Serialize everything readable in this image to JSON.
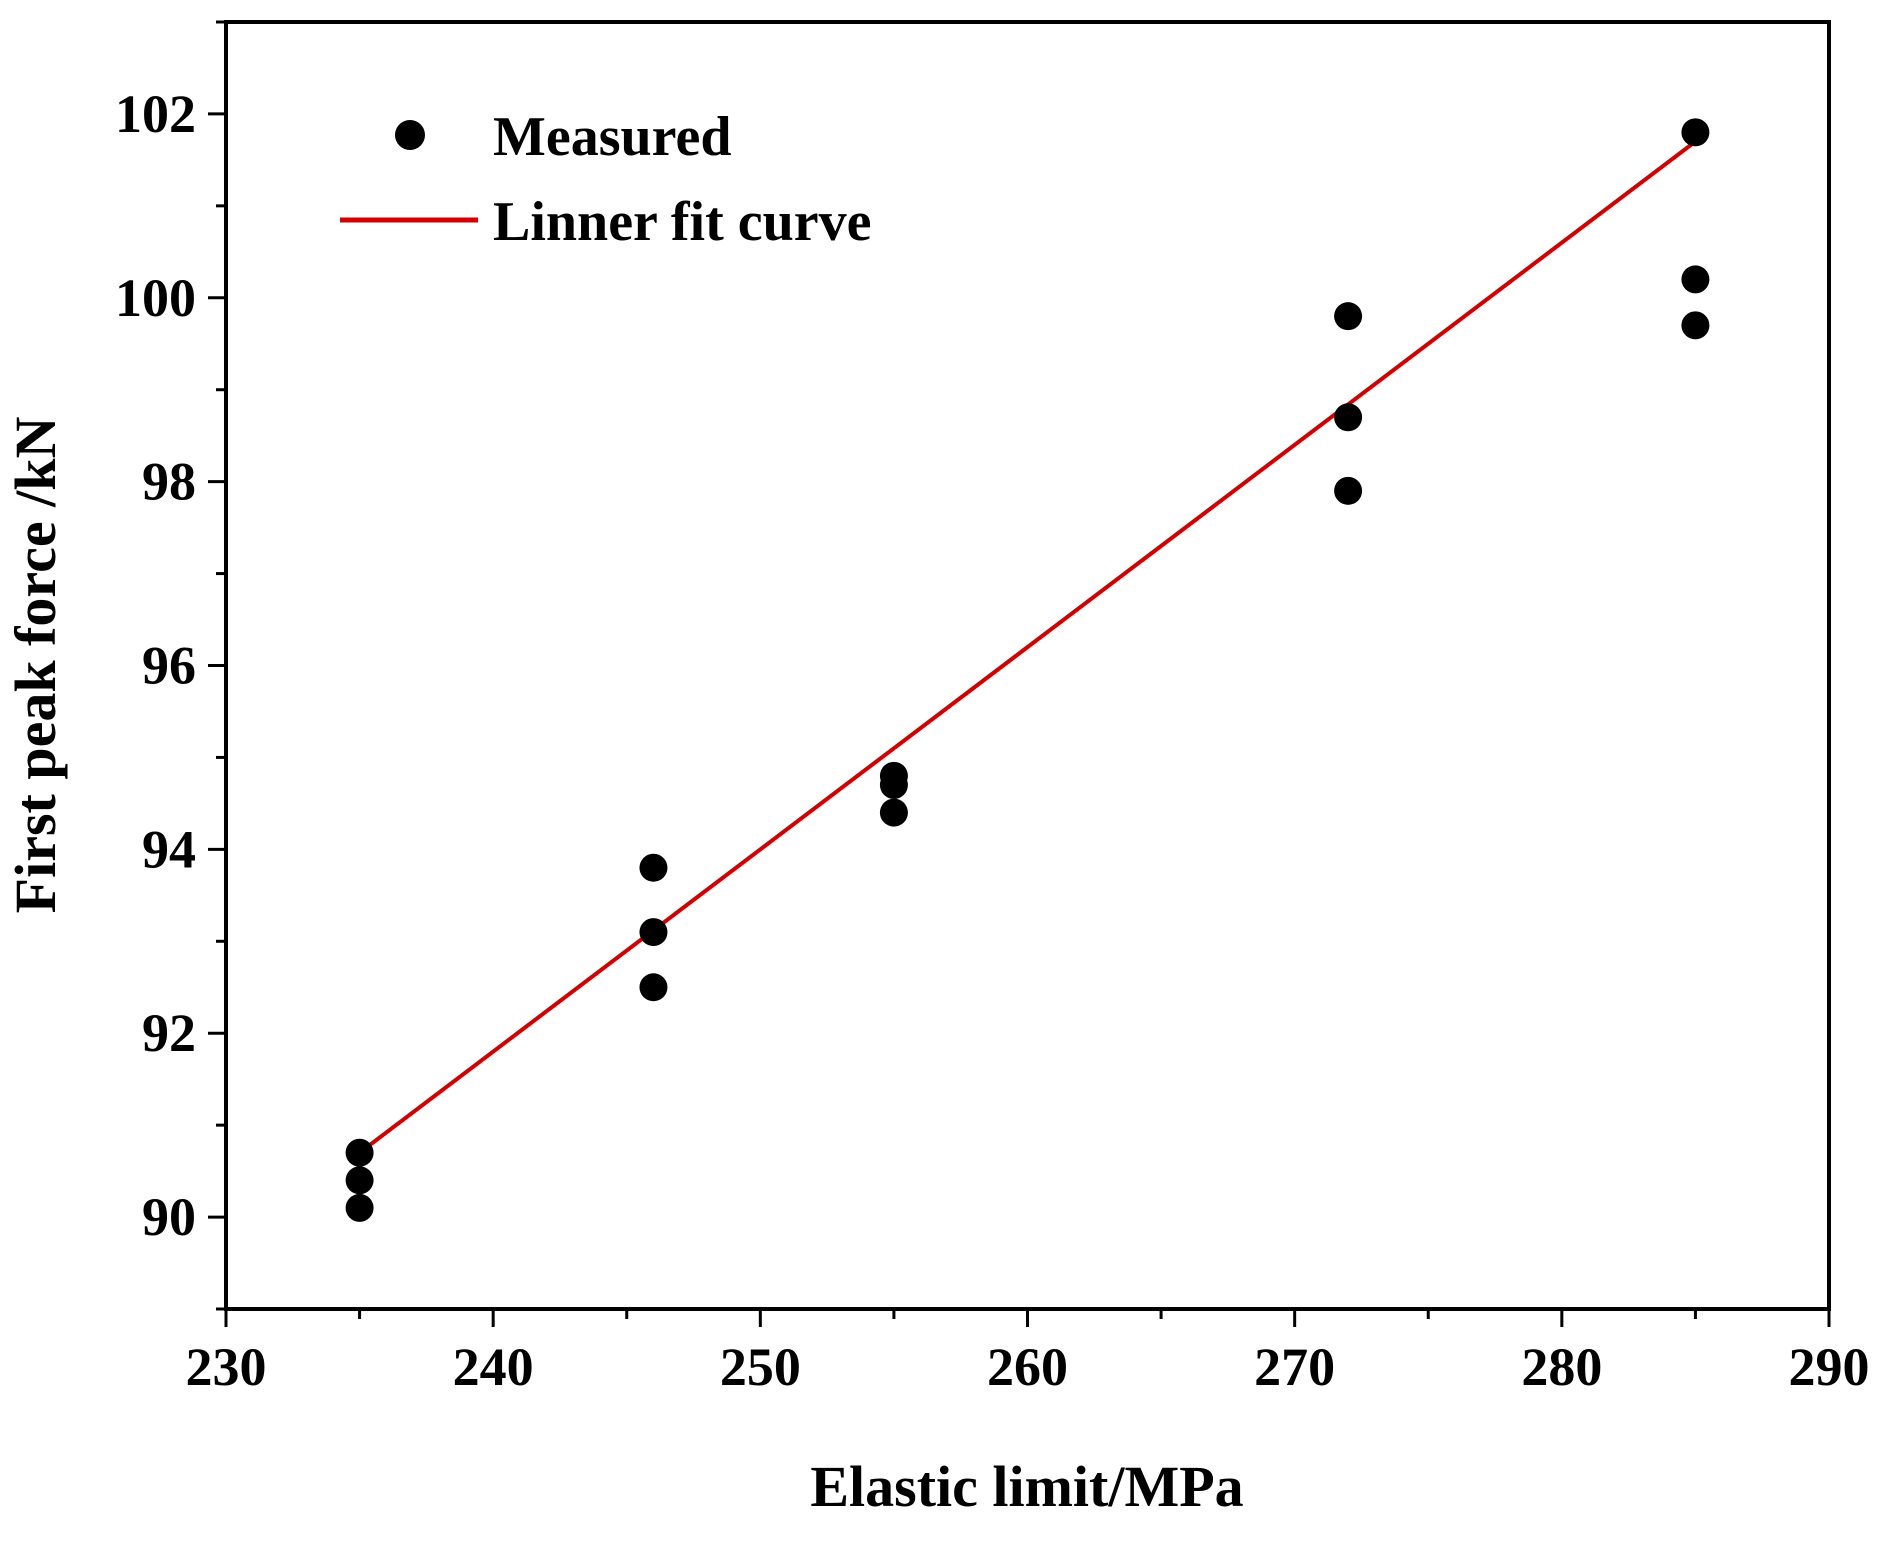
{
  "chart_data": {
    "type": "scatter",
    "title": "",
    "xlabel": "Elastic limit/MPa",
    "ylabel": "First peak force /kN",
    "xlim": [
      230,
      290
    ],
    "ylim": [
      89,
      103
    ],
    "xticks": [
      230,
      240,
      250,
      260,
      270,
      280,
      290
    ],
    "yticks": [
      90,
      92,
      94,
      96,
      98,
      100,
      102
    ],
    "grid": false,
    "legend_position": "top-left",
    "colors": {
      "measured": "#000000",
      "fit": "#d40000",
      "axis": "#000000"
    },
    "series": [
      {
        "name": "Measured",
        "kind": "scatter",
        "points": [
          {
            "x": 235,
            "y": 90.7
          },
          {
            "x": 235,
            "y": 90.4
          },
          {
            "x": 235,
            "y": 90.1
          },
          {
            "x": 246,
            "y": 93.8
          },
          {
            "x": 246,
            "y": 93.1
          },
          {
            "x": 246,
            "y": 92.5
          },
          {
            "x": 255,
            "y": 94.8
          },
          {
            "x": 255,
            "y": 94.7
          },
          {
            "x": 255,
            "y": 94.4
          },
          {
            "x": 272,
            "y": 99.8
          },
          {
            "x": 272,
            "y": 98.7
          },
          {
            "x": 272,
            "y": 97.9
          },
          {
            "x": 285,
            "y": 101.8
          },
          {
            "x": 285,
            "y": 100.2
          },
          {
            "x": 285,
            "y": 99.7
          }
        ]
      },
      {
        "name": "Linner fit curve",
        "kind": "line",
        "points": [
          {
            "x": 235,
            "y": 90.7
          },
          {
            "x": 285,
            "y": 101.7
          }
        ]
      }
    ]
  }
}
